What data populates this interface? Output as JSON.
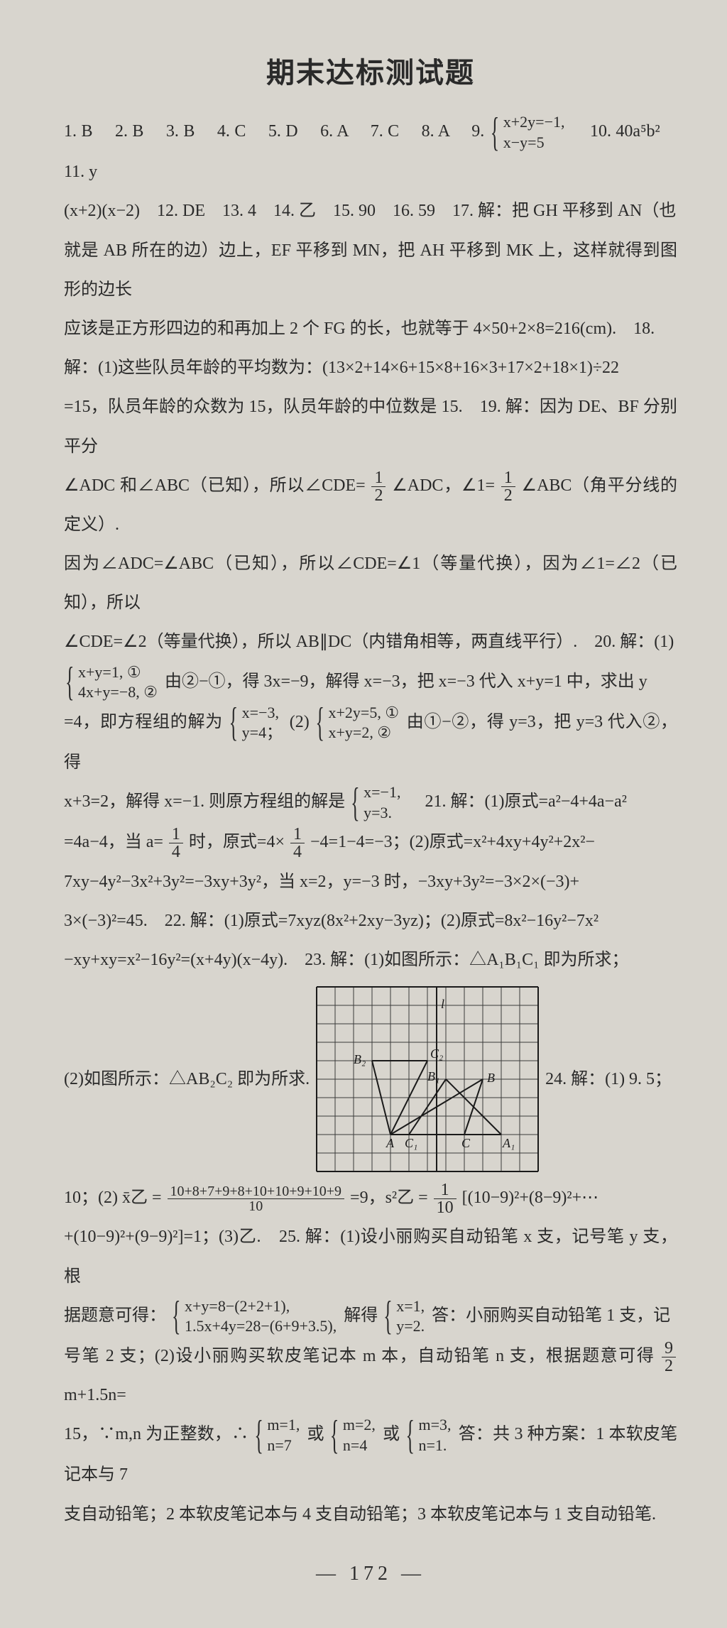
{
  "title": "期末达标测试题",
  "page_number": "— 172 —",
  "background_color": "#d8d5ce",
  "text_color": "#2a2a2a",
  "answers": {
    "q1": "1. B",
    "q2": "2. B",
    "q3": "3. B",
    "q4": "4. C",
    "q5": "5. D",
    "q6": "6. A",
    "q7": "7. C",
    "q8": "8. A",
    "q9_label": "9.",
    "q9_sys_top": "x+2y=−1,",
    "q9_sys_bot": "x−y=5",
    "q10": "10. 40a⁵b²",
    "q11": "11. y",
    "line2": "(x+2)(x−2)　12. DE　13. 4　14. 乙　15. 90　16. 59　17. 解：把 GH 平移到 AN（也",
    "line3": "就是 AB 所在的边）边上，EF 平移到 MN，把 AH 平移到 MK 上，这样就得到图形的边长",
    "line4": "应该是正方形四边的和再加上 2 个 FG 的长，也就等于 4×50+2×8=216(cm).　18.",
    "line5": "解：(1)这些队员年龄的平均数为：(13×2+14×6+15×8+16×3+17×2+18×1)÷22",
    "line6": "=15，队员年龄的众数为 15，队员年龄的中位数是 15.　19. 解：因为 DE、BF 分别平分",
    "line7a": "∠ADC 和∠ABC（已知），所以∠CDE=",
    "line7b": "∠ADC，∠1=",
    "line7c": "∠ABC（角平分线的定义）.",
    "line8": "因为∠ADC=∠ABC（已知），所以∠CDE=∠1（等量代换），因为∠1=∠2（已知），所以",
    "line9": "∠CDE=∠2（等量代换），所以 AB∥DC（内错角相等，两直线平行）.　20. 解：(1)",
    "q20_sys1_top": "x+y=1, ①",
    "q20_sys1_bot": "4x+y=−8, ②",
    "q20_mid1": "由②−①，得 3x=−9，解得 x=−3，把 x=−3 代入 x+y=1 中，求出 y",
    "q20_line2a": "=4，即方程组的解为",
    "q20_sys2_top": "x=−3,",
    "q20_sys2_bot": "y=4；",
    "q20_part2_label": "(2)",
    "q20_sys3_top": "x+2y=5, ①",
    "q20_sys3_bot": "x+y=2, ②",
    "q20_mid2": "由①−②，得 y=3，把 y=3 代入②，得",
    "q20_line3a": "x+3=2，解得 x=−1. 则原方程组的解是",
    "q20_sys4_top": "x=−1,",
    "q20_sys4_bot": "y=3.",
    "q21_a": "21. 解：(1)原式=a²−4+4a−a²",
    "q21_line2a": "=4a−4，当 a=",
    "q21_line2b": "时，原式=4×",
    "q21_line2c": "−4=1−4=−3；(2)原式=x²+4xy+4y²+2x²−",
    "q21_line3": "7xy−4y²−3x²+3y²=−3xy+3y²，当 x=2，y=−3 时，−3xy+3y²=−3×2×(−3)+",
    "q21_line4": "3×(−3)²=45.　22. 解：(1)原式=7xyz(8x²+2xy−3yz)；(2)原式=8x²−16y²−7x²",
    "q21_line5": "−xy+xy=x²−16y²=(x+4y)(x−4y).　23. 解：(1)如图所示：△A₁B₁C₁ 即为所求；",
    "q23_part2": "(2)如图所示：△AB₂C₂ 即为所求.",
    "q24_label": "24. 解：(1) 9. 5；",
    "q24_line1a": "10；(2) x̄乙 =",
    "q24_numer": "10+8+7+9+8+10+10+9+10+9",
    "q24_denom": "10",
    "q24_line1b": "=9，s²乙 =",
    "q24_frac2n": "1",
    "q24_frac2d": "10",
    "q24_line1c": "[(10−9)²+(8−9)²+⋯",
    "q24_line2": "+(10−9)²+(9−9)²]=1；(3)乙.　25. 解：(1)设小丽购买自动铅笔 x 支，记号笔 y 支，根",
    "q25_line1a": "据题意可得：",
    "q25_sys1_top": "x+y=8−(2+2+1),",
    "q25_sys1_bot": "1.5x+4y=28−(6+9+3.5),",
    "q25_mid1": "解得",
    "q25_sys2_top": "x=1,",
    "q25_sys2_bot": "y=2.",
    "q25_mid2": "答：小丽购买自动铅笔 1 支，记",
    "q25_line2a": "号笔 2 支；(2)设小丽购买软皮笔记本 m 本，自动铅笔 n 支，根据题意可得",
    "q25_frac_n": "9",
    "q25_frac_d": "2",
    "q25_line2b": "m+1.5n=",
    "q25_line3a": "15，∵m,n 为正整数，∴",
    "q25_sysA_top": "m=1,",
    "q25_sysA_bot": "n=7",
    "q25_or1": "或",
    "q25_sysB_top": "m=2,",
    "q25_sysB_bot": "n=4",
    "q25_or2": "或",
    "q25_sysC_top": "m=3,",
    "q25_sysC_bot": "n=1.",
    "q25_line3b": "答：共 3 种方案：1 本软皮笔记本与 7",
    "q25_line4": "支自动铅笔；2 本软皮笔记本与 4 支自动铅笔；3 本软皮笔记本与 1 支自动铅笔."
  },
  "frac_half": {
    "n": "1",
    "d": "2"
  },
  "frac_quarter": {
    "n": "1",
    "d": "4"
  },
  "figure": {
    "grid_color": "#3a3a3a",
    "bg": "#d8d5ce",
    "line_color": "#1a1a1a",
    "cell": 26,
    "cols": 12,
    "rows": 10,
    "labels": {
      "l": "l",
      "A": "A",
      "B": "B",
      "C": "C",
      "A1": "A₁",
      "B1": "B₁",
      "C1": "C₁",
      "B2": "B₂",
      "C2": "C₂"
    },
    "points": {
      "A": [
        4,
        8
      ],
      "C": [
        8,
        8
      ],
      "B": [
        9,
        5
      ],
      "A1": [
        10,
        8
      ],
      "C1": [
        5,
        8
      ],
      "B1": [
        7,
        5
      ],
      "B2": [
        3,
        4
      ],
      "C2": [
        6,
        4
      ],
      "l_top": [
        6.5,
        0
      ],
      "l_bot": [
        6.5,
        10
      ]
    }
  }
}
